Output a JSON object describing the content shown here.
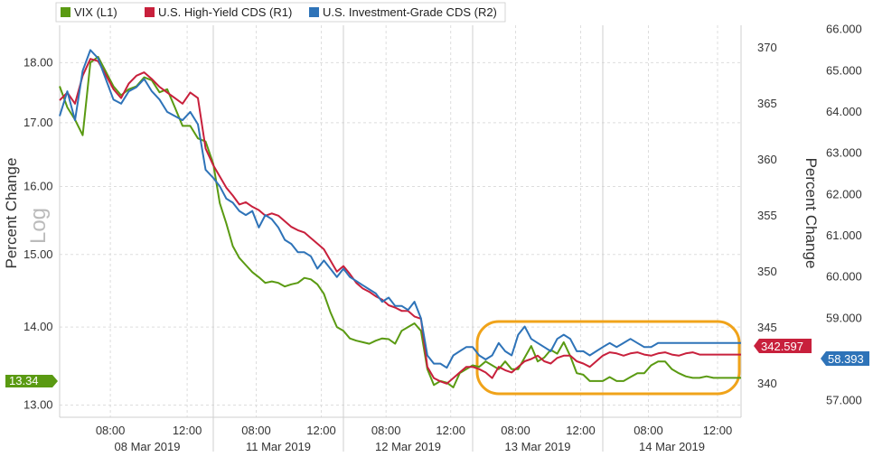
{
  "chart_data": {
    "type": "line",
    "legend": {
      "placement": "top-left",
      "items": [
        {
          "name": "VIX (L1)",
          "color": "#5a9a12"
        },
        {
          "name": "U.S. High-Yield CDS (R1)",
          "color": "#c8203c"
        },
        {
          "name": "U.S. Investment-Grade CDS (R2)",
          "color": "#2e73b8"
        }
      ]
    },
    "left_axis": {
      "label": "Percent Change",
      "scale_tag": "Log",
      "scale": "log",
      "range": [
        12.85,
        18.65
      ],
      "ticks": [
        "13.00",
        "14.00",
        "15.00",
        "16.00",
        "17.00",
        "18.00"
      ]
    },
    "right_axis_1": {
      "label": "Percent Change",
      "range": [
        337,
        372
      ],
      "ticks": [
        "340",
        "345",
        "350",
        "355",
        "360",
        "365",
        "370"
      ]
    },
    "right_axis_2": {
      "range": [
        56.6,
        66.1
      ],
      "ticks": [
        "57.000",
        "58.000",
        "59.000",
        "60.000",
        "61.000",
        "62.000",
        "63.000",
        "64.000",
        "65.000",
        "66.000"
      ]
    },
    "x_axis": {
      "time_ticks": [
        "08:00",
        "12:00",
        "08:00",
        "12:00",
        "08:00",
        "12:00",
        "08:00",
        "12:00",
        "08:00",
        "12:00"
      ],
      "day_labels": [
        "08 Mar 2019",
        "11 Mar 2019",
        "12 Mar 2019",
        "13 Mar 2019",
        "14 Mar 2019"
      ],
      "grid": true
    },
    "last_values": {
      "vix": "13.34",
      "hy": "342.597",
      "ig": "58.393"
    },
    "series": [
      {
        "name": "VIX (L1)",
        "axis": "left",
        "color": "#5a9a12",
        "x": [
          0,
          0.05,
          0.1,
          0.15,
          0.2,
          0.25,
          0.3,
          0.35,
          0.4,
          0.45,
          0.5,
          0.55,
          0.6,
          0.65,
          0.7,
          0.75,
          0.8,
          0.85,
          0.9,
          0.95,
          1.0,
          1.05,
          1.1,
          1.15,
          1.2,
          1.25,
          1.3,
          1.35,
          1.4,
          1.45,
          1.5,
          1.55,
          1.6,
          1.65,
          1.7,
          1.75,
          1.8,
          1.85,
          1.9,
          1.95,
          2.0,
          2.05,
          2.1,
          2.15,
          2.2,
          2.25,
          2.3,
          2.35,
          2.4,
          2.45,
          2.5,
          2.55,
          2.6,
          2.65,
          2.7,
          2.75,
          2.8,
          2.85,
          2.9,
          2.95,
          3.0,
          3.05,
          3.1,
          3.15,
          3.2,
          3.25,
          3.3,
          3.35,
          3.4,
          3.45,
          3.5,
          3.55,
          3.6,
          3.65,
          3.7,
          3.75,
          3.8,
          3.85,
          3.9,
          3.95,
          4.0,
          4.05,
          4.1,
          4.15,
          4.2,
          4.25,
          4.3,
          4.35,
          4.4,
          4.45,
          4.5,
          4.55,
          4.6,
          4.65,
          4.7,
          4.75,
          4.8,
          4.85,
          4.9,
          4.95,
          5.0
        ],
        "values": [
          17.6,
          17.25,
          17.05,
          16.8,
          18.0,
          18.1,
          17.85,
          17.6,
          17.45,
          17.55,
          17.6,
          17.75,
          17.7,
          17.5,
          17.55,
          17.25,
          16.95,
          16.95,
          16.75,
          16.7,
          16.35,
          15.75,
          15.45,
          15.12,
          14.95,
          14.85,
          14.75,
          14.68,
          14.6,
          14.62,
          14.6,
          14.55,
          14.58,
          14.6,
          14.67,
          14.65,
          14.58,
          14.45,
          14.2,
          14.0,
          13.95,
          13.85,
          13.82,
          13.8,
          13.78,
          13.82,
          13.85,
          13.84,
          13.78,
          13.95,
          14.0,
          14.05,
          13.95,
          13.45,
          13.25,
          13.3,
          13.28,
          13.22,
          13.4,
          13.45,
          13.5,
          13.48,
          13.55,
          13.5,
          13.45,
          13.55,
          13.45,
          13.45,
          13.6,
          13.75,
          13.55,
          13.6,
          13.7,
          13.65,
          13.8,
          13.62,
          13.4,
          13.38,
          13.3,
          13.3,
          13.3,
          13.35,
          13.3,
          13.3,
          13.35,
          13.4,
          13.4,
          13.5,
          13.55,
          13.55,
          13.45,
          13.4,
          13.36,
          13.34,
          13.34,
          13.36,
          13.34,
          13.34,
          13.34,
          13.34,
          13.34
        ]
      },
      {
        "name": "U.S. High-Yield CDS (R1)",
        "axis": "right1",
        "color": "#c8203c",
        "x": [
          0,
          0.05,
          0.1,
          0.15,
          0.2,
          0.25,
          0.3,
          0.35,
          0.4,
          0.45,
          0.5,
          0.55,
          0.6,
          0.65,
          0.7,
          0.75,
          0.8,
          0.85,
          0.9,
          0.95,
          1.0,
          1.05,
          1.1,
          1.15,
          1.2,
          1.25,
          1.3,
          1.35,
          1.4,
          1.45,
          1.5,
          1.55,
          1.6,
          1.65,
          1.7,
          1.75,
          1.8,
          1.85,
          1.9,
          1.95,
          2.0,
          2.05,
          2.1,
          2.15,
          2.2,
          2.25,
          2.3,
          2.35,
          2.4,
          2.45,
          2.5,
          2.55,
          2.6,
          2.65,
          2.7,
          2.75,
          2.8,
          2.85,
          2.9,
          2.95,
          3.0,
          3.05,
          3.1,
          3.15,
          3.2,
          3.25,
          3.3,
          3.35,
          3.4,
          3.45,
          3.5,
          3.55,
          3.6,
          3.65,
          3.7,
          3.75,
          3.8,
          3.85,
          3.9,
          3.95,
          4.0,
          4.05,
          4.1,
          4.15,
          4.2,
          4.25,
          4.3,
          4.35,
          4.4,
          4.45,
          4.5,
          4.55,
          4.6,
          4.65,
          4.7,
          4.75,
          4.8,
          4.85,
          4.9,
          4.95,
          5.0
        ],
        "values": [
          365.3,
          366.0,
          365.0,
          367.5,
          369.0,
          368.8,
          367.6,
          366.3,
          365.5,
          366.8,
          367.5,
          367.8,
          367.2,
          366.5,
          366.0,
          365.5,
          365.0,
          366.0,
          365.5,
          361.0,
          359.5,
          358.5,
          357.5,
          356.8,
          356.0,
          356.2,
          355.8,
          355.5,
          355.0,
          355.2,
          355.0,
          354.5,
          354.0,
          353.7,
          353.5,
          353.0,
          352.5,
          352.0,
          351.0,
          350.0,
          350.5,
          349.8,
          349.0,
          348.5,
          348.2,
          347.8,
          347.5,
          347.0,
          346.8,
          346.5,
          346.5,
          346.0,
          345.8,
          341.5,
          340.5,
          340.2,
          340.0,
          340.5,
          341.0,
          341.5,
          341.5,
          341.3,
          341.0,
          340.5,
          341.5,
          341.2,
          341.0,
          341.5,
          342.0,
          342.2,
          342.5,
          342.0,
          341.8,
          342.3,
          342.5,
          342.5,
          342.0,
          341.8,
          341.5,
          342.0,
          342.5,
          342.8,
          342.7,
          342.5,
          342.7,
          342.8,
          342.6,
          342.5,
          342.7,
          342.8,
          342.6,
          342.5,
          342.7,
          342.8,
          342.6,
          342.6,
          342.6,
          342.6,
          342.6,
          342.6,
          342.6
        ]
      },
      {
        "name": "U.S. Investment-Grade CDS (R2)",
        "axis": "right2",
        "color": "#2e73b8",
        "x": [
          0,
          0.05,
          0.1,
          0.15,
          0.2,
          0.25,
          0.3,
          0.35,
          0.4,
          0.45,
          0.5,
          0.55,
          0.6,
          0.65,
          0.7,
          0.75,
          0.8,
          0.85,
          0.9,
          0.95,
          1.0,
          1.05,
          1.1,
          1.15,
          1.2,
          1.25,
          1.3,
          1.35,
          1.4,
          1.45,
          1.5,
          1.55,
          1.6,
          1.65,
          1.7,
          1.75,
          1.8,
          1.85,
          1.9,
          1.95,
          2.0,
          2.05,
          2.1,
          2.15,
          2.2,
          2.25,
          2.3,
          2.35,
          2.4,
          2.45,
          2.5,
          2.55,
          2.6,
          2.65,
          2.7,
          2.75,
          2.8,
          2.85,
          2.9,
          2.95,
          3.0,
          3.05,
          3.1,
          3.15,
          3.2,
          3.25,
          3.3,
          3.35,
          3.4,
          3.45,
          3.5,
          3.55,
          3.6,
          3.65,
          3.7,
          3.75,
          3.8,
          3.85,
          3.9,
          3.95,
          4.0,
          4.05,
          4.1,
          4.15,
          4.2,
          4.25,
          4.3,
          4.35,
          4.4,
          4.45,
          4.5,
          4.55,
          4.6,
          4.65,
          4.7,
          4.75,
          4.8,
          4.85,
          4.9,
          4.95,
          5.0
        ],
        "values": [
          63.9,
          64.5,
          63.8,
          65.0,
          65.5,
          65.3,
          64.8,
          64.3,
          64.2,
          64.5,
          64.6,
          64.8,
          64.5,
          64.3,
          64.0,
          63.9,
          63.8,
          64.0,
          63.7,
          62.6,
          62.4,
          62.2,
          61.9,
          61.8,
          61.6,
          61.5,
          61.6,
          61.2,
          61.5,
          61.4,
          61.2,
          60.9,
          60.8,
          60.6,
          60.6,
          60.5,
          60.2,
          60.4,
          60.2,
          60.0,
          60.2,
          60.0,
          59.9,
          59.8,
          59.7,
          59.6,
          59.4,
          59.5,
          59.3,
          59.3,
          59.2,
          59.4,
          59.0,
          58.1,
          57.9,
          57.9,
          57.8,
          58.1,
          58.2,
          58.3,
          58.3,
          58.1,
          58.0,
          58.1,
          58.4,
          58.2,
          58.1,
          58.6,
          58.8,
          58.5,
          58.4,
          58.3,
          58.2,
          58.5,
          58.6,
          58.5,
          58.2,
          58.2,
          58.1,
          58.2,
          58.3,
          58.4,
          58.3,
          58.4,
          58.5,
          58.4,
          58.3,
          58.3,
          58.4,
          58.4,
          58.4,
          58.4,
          58.4,
          58.4,
          58.4,
          58.4,
          58.4,
          58.4,
          58.4,
          58.4,
          58.4
        ]
      }
    ]
  }
}
